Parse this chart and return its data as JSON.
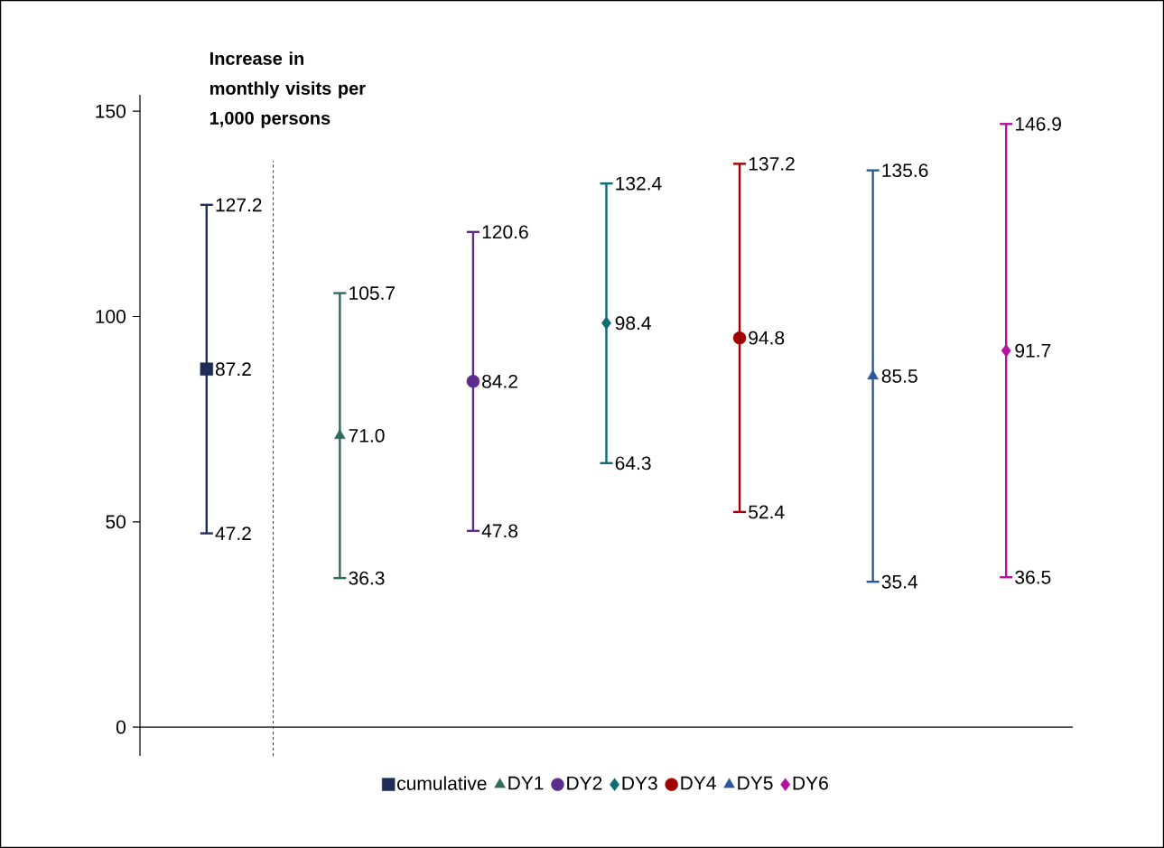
{
  "chart_data": {
    "type": "scatter",
    "ylabel": "Increase in monthly visits per 1,000 persons",
    "categories": [
      null,
      null,
      null,
      null,
      null,
      null,
      null
    ],
    "ylim": [
      -7,
      154
    ],
    "yticks": [
      0,
      50,
      100,
      150
    ],
    "grid": false,
    "legend": "bottom",
    "annotations": [
      "47.2",
      "127.2",
      "36.3",
      "105.7",
      "47.8",
      "120.6",
      "64.3",
      "132.4",
      "52.4",
      "137.2",
      "35.4",
      "135.6",
      "36.5",
      "146.9"
    ],
    "series": [
      {
        "name": "cumulative",
        "color": "#1f2d56",
        "marker": "square",
        "values": [
          87.2,
          null,
          null,
          null,
          null,
          null,
          null
        ],
        "value_labels": [
          "87.2",
          null,
          null,
          null,
          null,
          null,
          null
        ],
        "errors": [
          [
            47.2,
            127.2
          ],
          null,
          null,
          null,
          null,
          null,
          null
        ]
      },
      {
        "name": "DY1",
        "color": "#2e6b5a",
        "marker": "triangle",
        "values": [
          null,
          71.0,
          null,
          null,
          null,
          null,
          null
        ],
        "value_labels": [
          null,
          "71.0",
          null,
          null,
          null,
          null,
          null
        ],
        "errors": [
          null,
          [
            36.3,
            105.7
          ],
          null,
          null,
          null,
          null,
          null
        ]
      },
      {
        "name": "DY2",
        "color": "#5b2c8c",
        "marker": "circle",
        "values": [
          null,
          null,
          84.2,
          null,
          null,
          null,
          null
        ],
        "value_labels": [
          null,
          null,
          "84.2",
          null,
          null,
          null,
          null
        ],
        "errors": [
          null,
          null,
          [
            47.8,
            120.6
          ],
          null,
          null,
          null,
          null
        ]
      },
      {
        "name": "DY3",
        "color": "#0c6b75",
        "marker": "diamond",
        "values": [
          null,
          null,
          null,
          98.4,
          null,
          null,
          null
        ],
        "value_labels": [
          null,
          null,
          null,
          "98.4",
          null,
          null,
          null
        ],
        "errors": [
          null,
          null,
          null,
          [
            64.3,
            132.4
          ],
          null,
          null,
          null
        ]
      },
      {
        "name": "DY4",
        "color": "#a00000",
        "marker": "circle",
        "values": [
          null,
          null,
          null,
          null,
          94.8,
          null,
          null
        ],
        "value_labels": [
          null,
          null,
          null,
          null,
          "94.8",
          null,
          null
        ],
        "errors": [
          null,
          null,
          null,
          null,
          [
            52.4,
            137.2
          ],
          null,
          null
        ]
      },
      {
        "name": "DY5",
        "color": "#2a5a9c",
        "marker": "triangle",
        "values": [
          null,
          null,
          null,
          null,
          null,
          85.5,
          null
        ],
        "value_labels": [
          null,
          null,
          null,
          null,
          null,
          "85.5",
          null
        ],
        "errors": [
          null,
          null,
          null,
          null,
          null,
          [
            35.4,
            135.6
          ],
          null
        ]
      },
      {
        "name": "DY6",
        "color": "#b5139e",
        "marker": "diamond",
        "values": [
          null,
          null,
          null,
          null,
          null,
          null,
          91.7
        ],
        "value_labels": [
          null,
          null,
          null,
          null,
          null,
          null,
          "91.7"
        ],
        "errors": [
          null,
          null,
          null,
          null,
          null,
          null,
          [
            36.5,
            146.9
          ]
        ]
      }
    ]
  }
}
